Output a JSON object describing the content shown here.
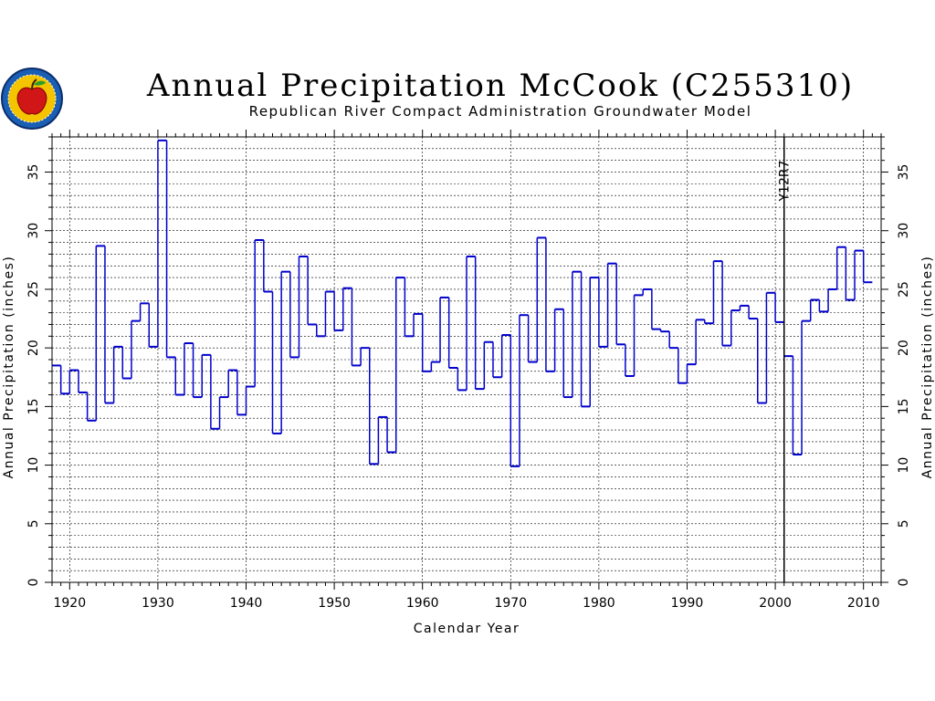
{
  "title": "Annual Precipitation McCook (C255310)",
  "subtitle": "Republican River Compact Administration Groundwater Model",
  "colors": {
    "series": "#0000cc",
    "grid": "#000000",
    "axis": "#000000"
  },
  "chart_data": {
    "type": "line",
    "step": true,
    "title": "Annual Precipitation McCook (C255310)",
    "subtitle": "Republican River Compact Administration Groundwater Model",
    "xlabel": "Calendar Year",
    "ylabel": "Annual Precipitation (inches)",
    "ylabel_right": "Annual Precipitation (inches)",
    "xlim": [
      1918,
      2012
    ],
    "ylim": [
      0,
      38
    ],
    "xticks": [
      1920,
      1930,
      1940,
      1950,
      1960,
      1970,
      1980,
      1990,
      2000,
      2010
    ],
    "yticks": [
      0,
      5,
      10,
      15,
      20,
      25,
      30,
      35
    ],
    "grid": true,
    "annotation": {
      "label": "Y12R7",
      "x": 2001
    },
    "x": [
      1918,
      1919,
      1920,
      1921,
      1922,
      1923,
      1924,
      1925,
      1926,
      1927,
      1928,
      1929,
      1930,
      1931,
      1932,
      1933,
      1934,
      1935,
      1936,
      1937,
      1938,
      1939,
      1940,
      1941,
      1942,
      1943,
      1944,
      1945,
      1946,
      1947,
      1948,
      1949,
      1950,
      1951,
      1952,
      1953,
      1954,
      1955,
      1956,
      1957,
      1958,
      1959,
      1960,
      1961,
      1962,
      1963,
      1964,
      1965,
      1966,
      1967,
      1968,
      1969,
      1970,
      1971,
      1972,
      1973,
      1974,
      1975,
      1976,
      1977,
      1978,
      1979,
      1980,
      1981,
      1982,
      1983,
      1984,
      1985,
      1986,
      1987,
      1988,
      1989,
      1990,
      1991,
      1992,
      1993,
      1994,
      1995,
      1996,
      1997,
      1998,
      1999,
      2000,
      2001,
      2002,
      2003,
      2004,
      2005,
      2006,
      2007,
      2008,
      2009,
      2010
    ],
    "series": [
      {
        "values": [
          18.5,
          16.1,
          18.1,
          16.2,
          13.8,
          28.7,
          15.3,
          20.1,
          17.4,
          22.3,
          23.8,
          20.1,
          37.7,
          19.2,
          16.0,
          20.4,
          15.8,
          19.4,
          13.1,
          15.8,
          18.1,
          14.3,
          16.7,
          29.2,
          24.8,
          12.7,
          26.5,
          19.2,
          27.8,
          22.0,
          21.0,
          24.8,
          21.5,
          25.1,
          18.5,
          20.0,
          10.1,
          14.1,
          11.1,
          26.0,
          21.0,
          22.9,
          18.0,
          18.8,
          24.3,
          18.3,
          16.4,
          27.8,
          16.5,
          20.5,
          17.5,
          21.1,
          9.9,
          22.8,
          18.8,
          29.4,
          18.0,
          23.3,
          15.8,
          26.5,
          15.0,
          26.0,
          20.1,
          27.2,
          20.3,
          17.6,
          24.5,
          25.0,
          21.6,
          21.4,
          20.0,
          17.0,
          18.6,
          22.4,
          22.1,
          27.4,
          20.2,
          23.2,
          23.6,
          22.5,
          15.3,
          24.7,
          22.2,
          19.3,
          10.9,
          22.3,
          24.1,
          23.1,
          25.0,
          28.6,
          24.1,
          28.3,
          25.6
        ]
      }
    ]
  }
}
